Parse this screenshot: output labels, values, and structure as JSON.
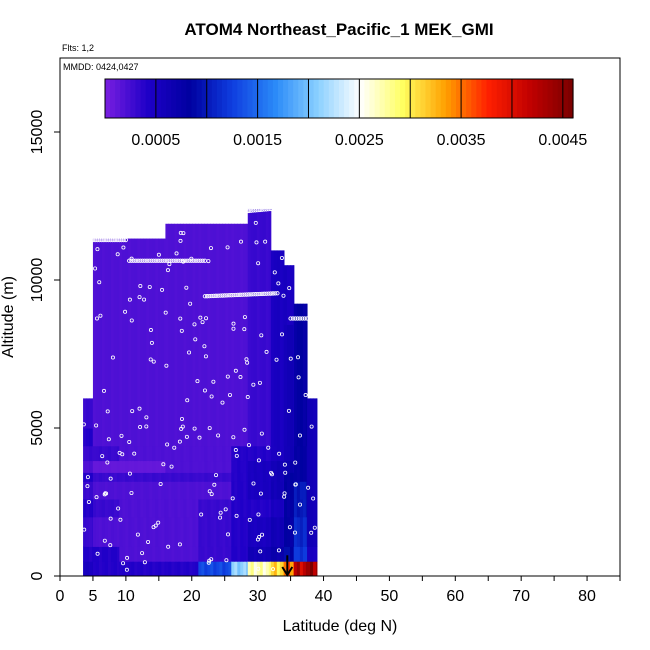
{
  "chart_data": {
    "type": "heatmap",
    "title": "ATOM4 Northeast_Pacific_1 MEK_GMI",
    "flights_note": "Flts: 1,2",
    "dates_note": "MMDD: 0424,0427",
    "xlabel": "Latitude (deg N)",
    "ylabel": "Altitude (m)",
    "xlim": [
      0,
      85
    ],
    "ylim": [
      0,
      17500
    ],
    "x_ticks": [
      0,
      5,
      10,
      20,
      30,
      40,
      50,
      60,
      70,
      80
    ],
    "y_ticks": [
      0,
      5000,
      10000,
      15000
    ],
    "colorbar": {
      "range": [
        0,
        0.0046
      ],
      "tick_values": [
        0.0005,
        0.0015,
        0.0025,
        0.0035,
        0.0045
      ],
      "tick_labels": [
        "0.0005",
        "0.0015",
        "0.0025",
        "0.0035",
        "0.0045"
      ],
      "colors": [
        "#7a1fe0",
        "#1f00c8",
        "#0000a0",
        "#0f3ee0",
        "#2a8af8",
        "#8ad0ff",
        "#ffffff",
        "#ffff60",
        "#ffa000",
        "#ff2000",
        "#c00000",
        "#7a0000"
      ]
    },
    "field_columns": [
      {
        "lat_from": 3.5,
        "lat_to": 5,
        "top": 6000,
        "values": [
          [
            0,
            500,
            0.0005
          ],
          [
            500,
            1000,
            0.0004
          ],
          [
            1000,
            2000,
            0.0003
          ],
          [
            2000,
            2600,
            0.0004
          ],
          [
            2600,
            3200,
            0.0003
          ],
          [
            3200,
            3500,
            0.0004
          ],
          [
            3500,
            3900,
            0.0002
          ],
          [
            3900,
            4400,
            0.0003
          ],
          [
            4400,
            5000,
            0.0004
          ],
          [
            5000,
            6000,
            0.0003
          ]
        ]
      },
      {
        "lat_from": 5,
        "lat_to": 9,
        "top": 11400,
        "values": [
          [
            0,
            500,
            0.0004
          ],
          [
            500,
            1000,
            0.0004
          ],
          [
            1000,
            2000,
            0.0002
          ],
          [
            2000,
            2600,
            0.0003
          ],
          [
            2600,
            3200,
            0.0002
          ],
          [
            3200,
            3500,
            0.0003
          ],
          [
            3500,
            3900,
            0.0001
          ],
          [
            3900,
            4400,
            0.0003
          ],
          [
            4400,
            11400,
            0.0002
          ]
        ]
      },
      {
        "lat_from": 9,
        "lat_to": 16,
        "top": 11400,
        "values": [
          [
            0,
            500,
            0.0004
          ],
          [
            500,
            1000,
            0.0002
          ],
          [
            1000,
            2000,
            0.0002
          ],
          [
            2000,
            2600,
            0.0002
          ],
          [
            2600,
            3200,
            0.0002
          ],
          [
            3200,
            3500,
            0.0003
          ],
          [
            3500,
            3900,
            0.0001
          ],
          [
            3900,
            4400,
            0.0002
          ],
          [
            4400,
            11400,
            0.0002
          ]
        ]
      },
      {
        "lat_from": 16,
        "lat_to": 21,
        "top": 11900,
        "values": [
          [
            0,
            500,
            0.0004
          ],
          [
            500,
            1000,
            0.0002
          ],
          [
            1000,
            2000,
            0.0002
          ],
          [
            2000,
            2600,
            0.0002
          ],
          [
            2600,
            3200,
            0.0002
          ],
          [
            3200,
            3500,
            0.0003
          ],
          [
            3500,
            3900,
            0.0002
          ],
          [
            3900,
            4400,
            0.0002
          ],
          [
            4400,
            11900,
            0.0002
          ]
        ]
      },
      {
        "lat_from": 21,
        "lat_to": 26,
        "top": 11900,
        "values": [
          [
            0,
            500,
            0.0013
          ],
          [
            500,
            1000,
            0.0003
          ],
          [
            1000,
            2000,
            0.0003
          ],
          [
            2000,
            2600,
            0.0003
          ],
          [
            2600,
            3200,
            0.0002
          ],
          [
            3200,
            3500,
            0.0003
          ],
          [
            3500,
            3900,
            0.0002
          ],
          [
            3900,
            4400,
            0.0002
          ],
          [
            4400,
            11900,
            0.0002
          ]
        ]
      },
      {
        "lat_from": 26,
        "lat_to": 28.5,
        "top": 11900,
        "values": [
          [
            0,
            500,
            0.0021
          ],
          [
            500,
            1000,
            0.0004
          ],
          [
            1000,
            2000,
            0.0004
          ],
          [
            2000,
            2600,
            0.0004
          ],
          [
            2600,
            3200,
            0.0004
          ],
          [
            3200,
            3500,
            0.0004
          ],
          [
            3500,
            3900,
            0.0004
          ],
          [
            3900,
            4400,
            0.0004
          ],
          [
            4400,
            11900,
            0.0002
          ]
        ]
      },
      {
        "lat_from": 28.5,
        "lat_to": 32,
        "top": 12400,
        "values": [
          [
            0,
            500,
            0.0027
          ],
          [
            500,
            1000,
            0.0006
          ],
          [
            1000,
            2000,
            0.0005
          ],
          [
            2000,
            2600,
            0.0004
          ],
          [
            2600,
            3200,
            0.0005
          ],
          [
            3200,
            3500,
            0.0005
          ],
          [
            3500,
            3900,
            0.0005
          ],
          [
            3900,
            4400,
            0.0004
          ],
          [
            4400,
            12400,
            0.0003
          ]
        ]
      },
      {
        "lat_from": 32,
        "lat_to": 34,
        "top": 11000,
        "values": [
          [
            0,
            500,
            0.0031
          ],
          [
            500,
            1000,
            0.0007
          ],
          [
            1000,
            2000,
            0.0006
          ],
          [
            2000,
            2600,
            0.0005
          ],
          [
            2600,
            3200,
            0.0006
          ],
          [
            3200,
            3500,
            0.0006
          ],
          [
            3500,
            3900,
            0.0006
          ],
          [
            3900,
            4400,
            0.0005
          ],
          [
            4400,
            11000,
            0.0005
          ]
        ]
      },
      {
        "lat_from": 34,
        "lat_to": 35.5,
        "top": 10500,
        "values": [
          [
            0,
            500,
            0.0035
          ],
          [
            500,
            1000,
            0.0009
          ],
          [
            1000,
            2000,
            0.0008
          ],
          [
            2000,
            2600,
            0.0008
          ],
          [
            2600,
            3200,
            0.0008
          ],
          [
            3200,
            3500,
            0.0008
          ],
          [
            3500,
            3900,
            0.0007
          ],
          [
            3900,
            4400,
            0.0006
          ],
          [
            4400,
            8500,
            0.0006
          ],
          [
            8500,
            10500,
            0.0005
          ]
        ]
      },
      {
        "lat_from": 35.5,
        "lat_to": 37.5,
        "top": 9200,
        "values": [
          [
            0,
            500,
            0.0042
          ],
          [
            500,
            1000,
            0.0012
          ],
          [
            1000,
            2000,
            0.0011
          ],
          [
            2000,
            2600,
            0.001
          ],
          [
            2600,
            3200,
            0.001
          ],
          [
            3200,
            4400,
            0.0008
          ],
          [
            4400,
            9200,
            0.0008
          ]
        ]
      },
      {
        "lat_from": 37.5,
        "lat_to": 39,
        "top": 6000,
        "values": [
          [
            0,
            500,
            0.0044
          ],
          [
            500,
            1000,
            0.0005
          ],
          [
            1000,
            6000,
            0.0006
          ]
        ]
      }
    ],
    "flight_tracks": [
      {
        "from_lat": 5,
        "to_lat": 10,
        "alt": 11350
      },
      {
        "from_lat": 10.5,
        "to_lat": 22,
        "alt": 10650
      },
      {
        "from_lat": 22,
        "to_lat": 33,
        "alt": 9450
      },
      {
        "from_lat": 27,
        "to_lat": 32,
        "alt": 12300
      },
      {
        "from_lat": 35,
        "to_lat": 37.5,
        "alt": 8700
      }
    ],
    "marker": {
      "type": "down-arrow",
      "lat": 34.5,
      "alt_from": 700,
      "alt_to": 0
    }
  }
}
